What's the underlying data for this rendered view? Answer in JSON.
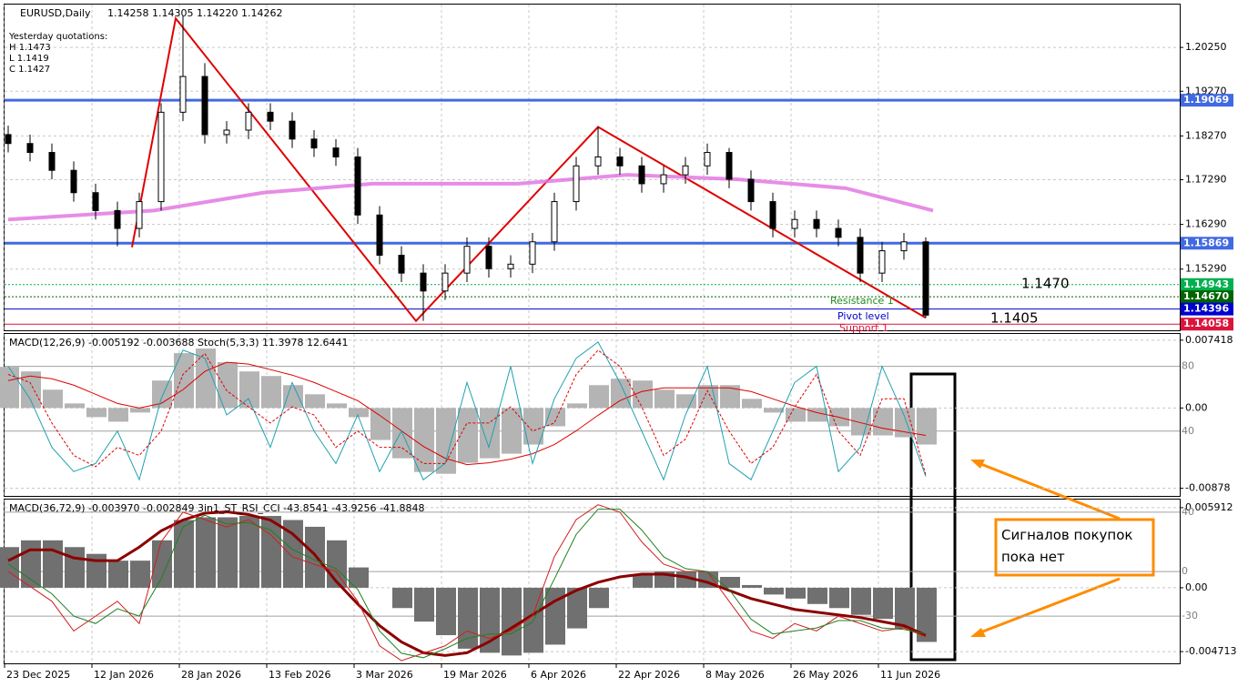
{
  "chart_data": [
    {
      "type": "candlestick",
      "title": "EURUSD,Daily",
      "subtitle": "1.14258 1.14305 1.14220 1.14262",
      "quotes": [
        "Yesterday quotations:",
        "H 1.1473",
        "L 1.1419",
        "C 1.1427"
      ],
      "x": [
        0,
        3,
        6,
        9,
        12,
        15,
        18,
        21,
        24,
        27,
        30,
        33,
        36,
        39,
        42,
        45,
        48,
        51,
        54,
        57,
        60,
        63,
        66,
        69,
        72,
        75,
        78,
        81,
        84,
        87,
        90,
        93,
        96,
        99,
        102,
        105,
        108,
        111,
        114,
        117,
        120,
        123,
        126
      ],
      "open": [
        1.183,
        1.181,
        1.179,
        1.175,
        1.17,
        1.166,
        1.162,
        1.168,
        1.188,
        1.196,
        1.183,
        1.184,
        1.188,
        1.186,
        1.182,
        1.18,
        1.178,
        1.165,
        1.156,
        1.152,
        1.148,
        1.152,
        1.158,
        1.153,
        1.154,
        1.159,
        1.168,
        1.176,
        1.178,
        1.176,
        1.172,
        1.174,
        1.176,
        1.179,
        1.173,
        1.168,
        1.162,
        1.164,
        1.162,
        1.16,
        1.152,
        1.157,
        1.159
      ],
      "high": [
        1.185,
        1.183,
        1.181,
        1.177,
        1.172,
        1.168,
        1.17,
        1.19,
        1.2095,
        1.199,
        1.186,
        1.19,
        1.19,
        1.188,
        1.184,
        1.182,
        1.18,
        1.167,
        1.158,
        1.154,
        1.154,
        1.16,
        1.16,
        1.156,
        1.161,
        1.17,
        1.178,
        1.1847,
        1.18,
        1.178,
        1.176,
        1.178,
        1.181,
        1.18,
        1.175,
        1.17,
        1.166,
        1.166,
        1.164,
        1.162,
        1.159,
        1.161,
        1.16
      ],
      "low": [
        1.179,
        1.177,
        1.173,
        1.168,
        1.164,
        1.158,
        1.16,
        1.166,
        1.186,
        1.181,
        1.181,
        1.182,
        1.184,
        1.18,
        1.178,
        1.176,
        1.163,
        1.154,
        1.15,
        1.1413,
        1.146,
        1.15,
        1.151,
        1.151,
        1.152,
        1.157,
        1.166,
        1.174,
        1.174,
        1.17,
        1.17,
        1.172,
        1.174,
        1.171,
        1.166,
        1.16,
        1.16,
        1.16,
        1.158,
        1.15,
        1.15,
        1.155,
        1.142
      ],
      "close": [
        1.181,
        1.179,
        1.175,
        1.17,
        1.166,
        1.162,
        1.168,
        1.188,
        1.196,
        1.183,
        1.184,
        1.188,
        1.186,
        1.182,
        1.18,
        1.178,
        1.165,
        1.156,
        1.152,
        1.148,
        1.152,
        1.158,
        1.153,
        1.154,
        1.159,
        1.168,
        1.176,
        1.178,
        1.176,
        1.172,
        1.174,
        1.176,
        1.179,
        1.173,
        1.168,
        1.162,
        1.164,
        1.162,
        1.16,
        1.152,
        1.157,
        1.159,
        1.1426
      ],
      "lines": [
        {
          "color": "#e00000",
          "x": [
            17,
            23,
            56,
            81,
            126
          ],
          "values": [
            1.1578,
            1.209,
            1.1413,
            1.1847,
            1.142
          ]
        },
        {
          "color": "#e070e0",
          "x": [
            0,
            20,
            35,
            50,
            70,
            85,
            100,
            115,
            127
          ],
          "values": [
            1.164,
            1.166,
            1.17,
            1.172,
            1.172,
            1.174,
            1.173,
            1.171,
            1.166
          ]
        }
      ],
      "levels": [
        {
          "value": 1.19069,
          "label": "1.19069",
          "color": "#4169e1"
        },
        {
          "value": 1.15869,
          "label": "1.15869",
          "color": "#4169e1"
        },
        {
          "value": 1.14943,
          "label": "1.14943",
          "color": "#00b050"
        },
        {
          "value": 1.1467,
          "label": "1.14670",
          "color": "#006400"
        },
        {
          "value": 1.14396,
          "label": "1.14396",
          "color": "#0000cd"
        },
        {
          "value": 1.14058,
          "label": "1.14058",
          "color": "#dc143c"
        }
      ],
      "annotations": [
        "1.1470",
        "1.1405",
        "Resistance 1",
        "Pivot level",
        "Support 1"
      ],
      "ylim": [
        1.1392,
        1.2121
      ],
      "yticks": [
        {
          "value": 1.2025,
          "label": "1.20250"
        },
        {
          "value": 1.1927,
          "label": "1.19270"
        },
        {
          "value": 1.1827,
          "label": "1.18270"
        },
        {
          "value": 1.1729,
          "label": "1.17290"
        },
        {
          "value": 1.1629,
          "label": "1.16290"
        },
        {
          "value": 1.1529,
          "label": "1.15290"
        }
      ],
      "xticks": [
        {
          "value": 0,
          "label": "23 Dec 2025"
        },
        {
          "value": 12,
          "label": "12 Jan 2026"
        },
        {
          "value": 24,
          "label": "28 Jan 2026"
        },
        {
          "value": 36,
          "label": "13 Feb 2026"
        },
        {
          "value": 48,
          "label": "3 Mar 2026"
        },
        {
          "value": 60,
          "label": "19 Mar 2026"
        },
        {
          "value": 72,
          "label": "6 Apr 2026"
        },
        {
          "value": 84,
          "label": "22 Apr 2026"
        },
        {
          "value": 96,
          "label": "8 May 2026"
        },
        {
          "value": 108,
          "label": "26 May 2026"
        },
        {
          "value": 120,
          "label": "11 Jun 2026"
        }
      ]
    },
    {
      "type": "macd",
      "title": "MACD(12,26,9) -0.005192 -0.003688  Stoch(5,3,3) 11.3978 12.6441",
      "hist_color": "#b4b4b4",
      "series": [
        {
          "values": [
            0.0045,
            0.004,
            0.002,
            0.0005,
            -0.001,
            -0.0015,
            -0.0005,
            0.003,
            0.006,
            0.0065,
            0.005,
            0.004,
            0.0035,
            0.0025,
            0.0015,
            0.0005,
            -0.001,
            -0.0035,
            -0.0055,
            -0.007,
            -0.0072,
            -0.006,
            -0.0055,
            -0.005,
            -0.004,
            -0.002,
            0.0005,
            0.0025,
            0.0032,
            0.003,
            0.002,
            0.0015,
            0.0025,
            0.0025,
            0.001,
            -0.0005,
            -0.0015,
            -0.0015,
            -0.002,
            -0.003,
            -0.003,
            -0.0032,
            -0.004
          ]
        },
        {
          "color": "#e00000",
          "values": [
            0.003,
            0.0035,
            0.0032,
            0.0025,
            0.0015,
            0.0005,
            0,
            0.0005,
            0.002,
            0.004,
            0.005,
            0.0048,
            0.0042,
            0.0036,
            0.0028,
            0.0018,
            0.0008,
            -0.0008,
            -0.0025,
            -0.0042,
            -0.0055,
            -0.0062,
            -0.006,
            -0.0056,
            -0.005,
            -0.004,
            -0.0025,
            -0.0008,
            0.0008,
            0.0018,
            0.0022,
            0.0022,
            0.0022,
            0.0022,
            0.0018,
            0.001,
            0.0002,
            -0.0005,
            -0.001,
            -0.0016,
            -0.0022,
            -0.0026,
            -0.003
          ]
        },
        {
          "color": "#20a0b0",
          "axis": "y2",
          "values": [
            80,
            60,
            30,
            15,
            20,
            40,
            10,
            60,
            90,
            85,
            50,
            60,
            30,
            70,
            40,
            20,
            50,
            15,
            40,
            10,
            20,
            70,
            30,
            80,
            20,
            60,
            85,
            95,
            70,
            40,
            10,
            50,
            80,
            20,
            10,
            40,
            70,
            80,
            15,
            30,
            80,
            50,
            12
          ]
        },
        {
          "color": "#e00000",
          "axis": "y2",
          "dashed": true,
          "values": [
            75,
            70,
            45,
            25,
            18,
            30,
            25,
            40,
            75,
            88,
            65,
            55,
            45,
            55,
            50,
            30,
            40,
            30,
            30,
            20,
            20,
            45,
            45,
            55,
            40,
            45,
            75,
            90,
            80,
            55,
            25,
            35,
            65,
            40,
            20,
            30,
            55,
            75,
            40,
            25,
            60,
            60,
            13
          ]
        }
      ],
      "ylim": [
        -0.00962,
        0.0081
      ],
      "yticks": [
        0.007418,
        {
          "value": 0,
          "label": "0.00"
        },
        -0.00878
      ],
      "y2lim": [
        0,
        100
      ],
      "y2ticks": [
        80,
        40
      ]
    },
    {
      "type": "macd",
      "title": "MACD(36,72,9) -0.003970 -0.002849  3in1_ST_RSI_CCI -43.8541 -43.9256 -41.8848",
      "hist_color": "#707070",
      "series": [
        {
          "values": [
            0.003,
            0.0035,
            0.0035,
            0.003,
            0.0025,
            0.002,
            0.002,
            0.0035,
            0.005,
            0.0052,
            0.0052,
            0.0053,
            0.0053,
            0.005,
            0.0045,
            0.0035,
            0.0015,
            0,
            -0.0015,
            -0.0025,
            -0.0035,
            -0.0045,
            -0.0048,
            -0.005,
            -0.0048,
            -0.0042,
            -0.003,
            -0.0015,
            0,
            0.001,
            0.0012,
            0.0012,
            0.0012,
            0.0008,
            0.0002,
            -0.0005,
            -0.0008,
            -0.0012,
            -0.0015,
            -0.002,
            -0.0023,
            -0.003,
            -0.004
          ]
        },
        {
          "color": "#8b0000",
          "width": 3,
          "values": [
            0.002,
            0.0028,
            0.0028,
            0.0022,
            0.002,
            0.002,
            0.003,
            0.0042,
            0.005,
            0.0055,
            0.0056,
            0.0054,
            0.005,
            0.004,
            0.0025,
            0.0005,
            -0.0012,
            -0.0028,
            -0.004,
            -0.0048,
            -0.005,
            -0.0048,
            -0.004,
            -0.003,
            -0.002,
            -0.001,
            -0.0002,
            0.0004,
            0.0008,
            0.001,
            0.001,
            0.0008,
            0.0004,
            -0.0002,
            -0.0008,
            -0.0012,
            -0.0016,
            -0.0018,
            -0.002,
            -0.0022,
            -0.0025,
            -0.0028,
            -0.0035
          ]
        },
        {
          "color": "#d02020",
          "axis": "y2",
          "values": [
            0,
            -10,
            -20,
            -40,
            -30,
            -20,
            -35,
            20,
            40,
            35,
            30,
            35,
            25,
            10,
            5,
            0,
            -20,
            -50,
            -60,
            -55,
            -50,
            -40,
            -45,
            -40,
            -30,
            10,
            35,
            45,
            40,
            20,
            5,
            0,
            0,
            -20,
            -40,
            -45,
            -35,
            -40,
            -30,
            -35,
            -40,
            -38,
            -44
          ]
        },
        {
          "color": "#208020",
          "axis": "y2",
          "values": [
            5,
            -5,
            -15,
            -30,
            -35,
            -25,
            -30,
            -5,
            30,
            38,
            32,
            33,
            28,
            15,
            8,
            2,
            -12,
            -40,
            -55,
            -58,
            -52,
            -45,
            -42,
            -42,
            -34,
            -5,
            25,
            42,
            42,
            28,
            10,
            2,
            0,
            -12,
            -32,
            -42,
            -40,
            -38,
            -33,
            -33,
            -38,
            -39,
            -42
          ]
        }
      ],
      "ylim": [
        -0.00558,
        0.00651
      ],
      "yticks": [
        0.005912,
        {
          "value": 0,
          "label": "0.00"
        },
        -0.004713
      ],
      "y2lim": [
        -61.8,
        48.5
      ],
      "y2ticks": [
        40,
        0,
        -30
      ]
    }
  ],
  "note": "Сигналов покупок пока нет"
}
